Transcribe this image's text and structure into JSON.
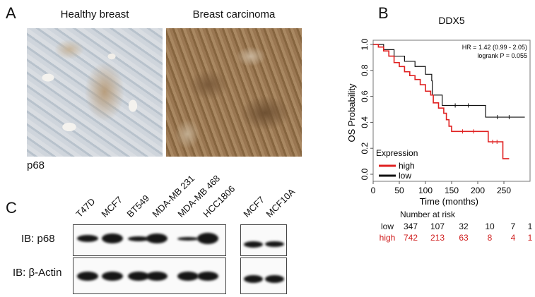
{
  "panel_a": {
    "letter": "A",
    "titles": [
      "Healthy breast",
      "Breast carcinoma"
    ],
    "stain_label": "p68"
  },
  "panel_b": {
    "letter": "B",
    "chart_data": {
      "type": "line",
      "title": "DDX5",
      "xlabel": "Time (months)",
      "ylabel": "OS Probability",
      "xlim": [
        0,
        290
      ],
      "ylim": [
        0,
        1
      ],
      "xticks": [
        0,
        50,
        100,
        150,
        200,
        250
      ],
      "yticks": [
        "0.0",
        "0.2",
        "0.4",
        "0.6",
        "0.8",
        "1.0"
      ],
      "annotation": [
        "HR = 1.42 (0.99 - 2.05)",
        "logrank P = 0.055"
      ],
      "legend": {
        "title": "Expression",
        "placement": "bottom-left"
      },
      "series": [
        {
          "name": "high",
          "color": "#e02020",
          "x": [
            0,
            10,
            20,
            30,
            40,
            50,
            60,
            70,
            80,
            90,
            100,
            110,
            115,
            125,
            135,
            140,
            145,
            150,
            220,
            220,
            248,
            248,
            260
          ],
          "y": [
            1,
            0.98,
            0.95,
            0.91,
            0.86,
            0.83,
            0.79,
            0.76,
            0.73,
            0.69,
            0.64,
            0.61,
            0.55,
            0.51,
            0.47,
            0.42,
            0.37,
            0.33,
            0.33,
            0.25,
            0.25,
            0.12,
            0.12
          ]
        },
        {
          "name": "low",
          "color": "#111111",
          "x": [
            0,
            20,
            40,
            60,
            80,
            100,
            112,
            113,
            132,
            132,
            215,
            215,
            290
          ],
          "y": [
            1,
            0.96,
            0.91,
            0.87,
            0.83,
            0.77,
            0.72,
            0.61,
            0.61,
            0.53,
            0.53,
            0.44,
            0.44
          ]
        }
      ]
    },
    "risk": {
      "heading": "Number at risk",
      "rows": [
        {
          "label": "low",
          "values": [
            "347",
            "107",
            "32",
            "10",
            "7",
            "1"
          ]
        },
        {
          "label": "high",
          "values": [
            "742",
            "213",
            "63",
            "8",
            "4",
            "1"
          ]
        }
      ]
    }
  },
  "panel_c": {
    "letter": "C",
    "lanes_left": [
      "T47D",
      "MCF7",
      "BT549",
      "MDA-MB 231",
      "MDA-MB 468",
      "HCC1806"
    ],
    "lanes_right": [
      "MCF7",
      "MCF10A"
    ],
    "blot_labels": [
      "IB: p68",
      "IB: β-Actin"
    ]
  }
}
